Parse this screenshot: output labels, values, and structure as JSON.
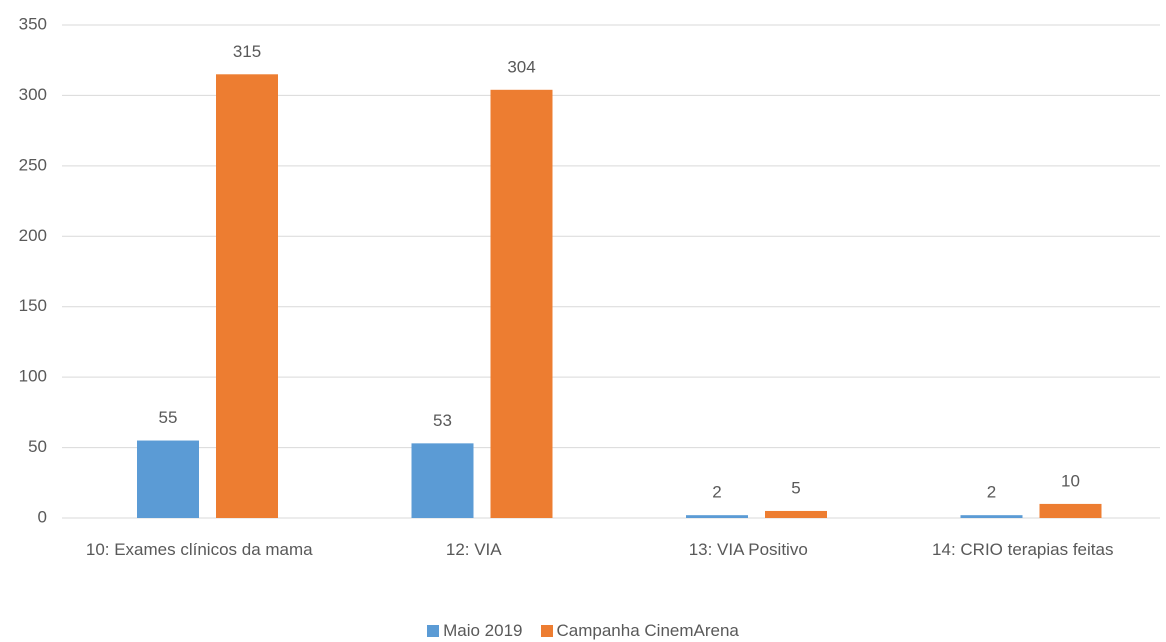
{
  "chart_data": {
    "type": "bar",
    "categories": [
      "10: Exames clínicos da mama",
      "12: VIA",
      "13: VIA Positivo",
      "14: CRIO terapias feitas"
    ],
    "series": [
      {
        "name": "Maio 2019",
        "color": "#5b9bd5",
        "values": [
          55,
          53,
          2,
          2
        ]
      },
      {
        "name": "Campanha CinemArena",
        "color": "#ed7d31",
        "values": [
          315,
          304,
          5,
          10
        ]
      }
    ],
    "ylim": [
      0,
      350
    ],
    "yticks": [
      0,
      50,
      100,
      150,
      200,
      250,
      300,
      350
    ],
    "grid": true,
    "legend": "bottom"
  }
}
